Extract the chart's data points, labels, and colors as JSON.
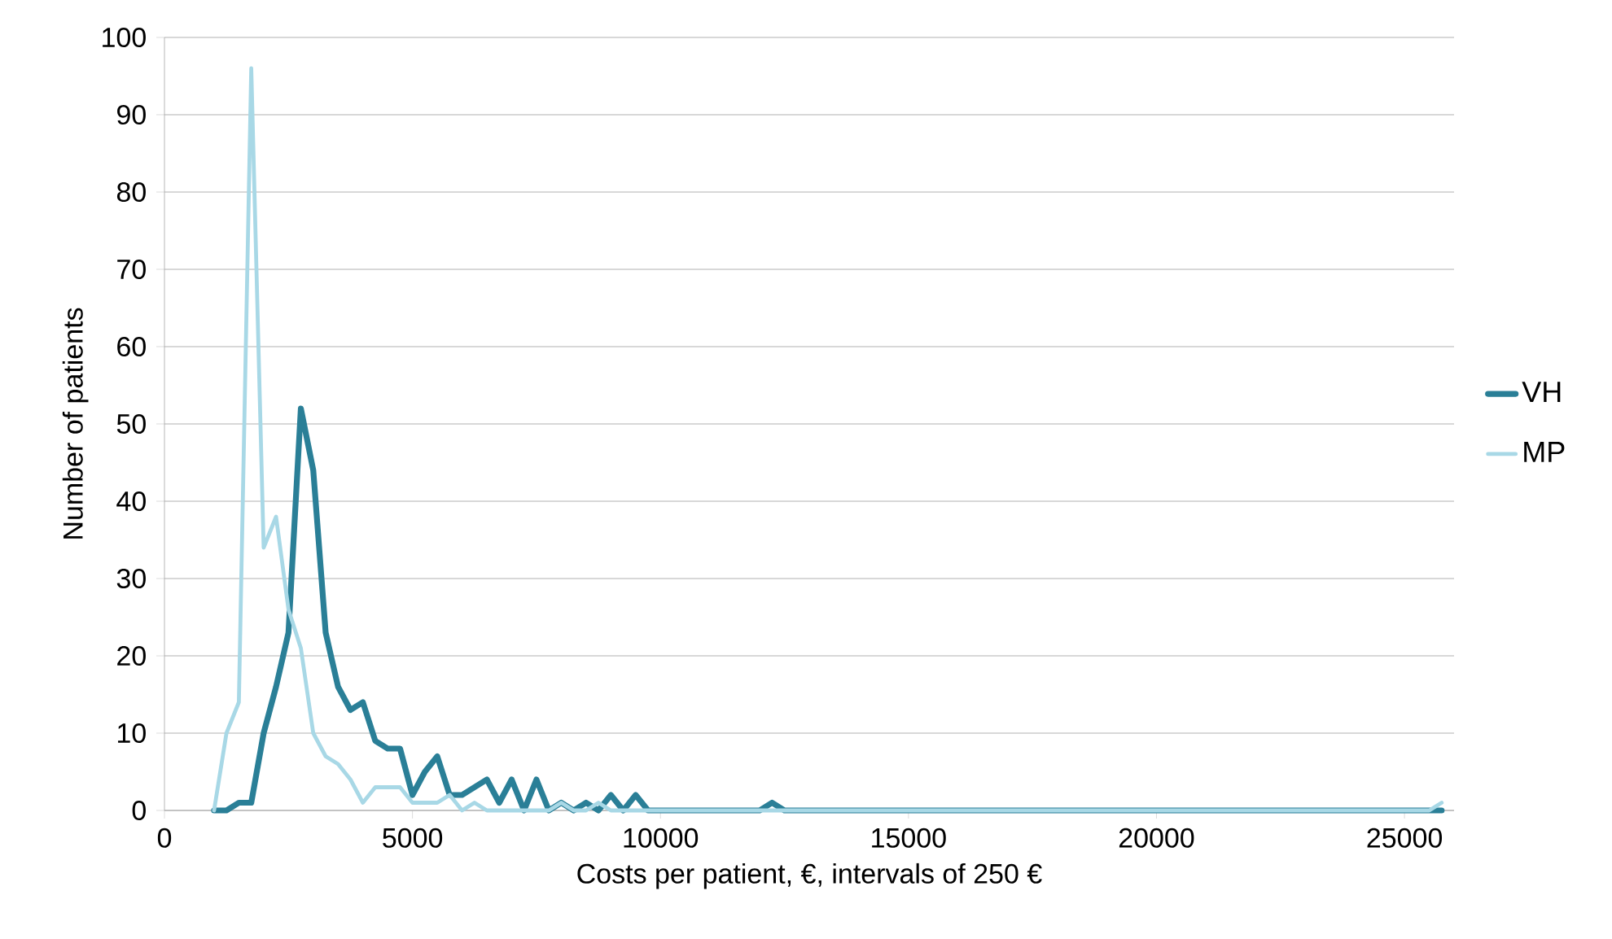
{
  "chart_data": {
    "type": "line",
    "xlabel": "Costs per patient, €, intervals of 250 €",
    "ylabel": "Number of patients",
    "xlim": [
      0,
      26000
    ],
    "ylim": [
      0,
      100
    ],
    "xticks": [
      0,
      5000,
      10000,
      15000,
      20000,
      25000
    ],
    "yticks": [
      0,
      10,
      20,
      30,
      40,
      50,
      60,
      70,
      80,
      90,
      100
    ],
    "grid": "y",
    "legend": "right",
    "series": [
      {
        "name": "VH",
        "color": "#2a7f97",
        "x": [
          1000,
          1250,
          1500,
          1750,
          2000,
          2250,
          2500,
          2750,
          3000,
          3250,
          3500,
          3750,
          4000,
          4250,
          4500,
          4750,
          5000,
          5250,
          5500,
          5750,
          6000,
          6250,
          6500,
          6750,
          7000,
          7250,
          7500,
          7750,
          8000,
          8250,
          8500,
          8750,
          9000,
          9250,
          9500,
          9750,
          10000,
          10250,
          10500,
          10750,
          11000,
          11250,
          11500,
          11750,
          12000,
          12250,
          12500,
          12750,
          25500,
          25750
        ],
        "values": [
          0,
          0,
          1,
          1,
          10,
          16,
          23,
          52,
          44,
          23,
          16,
          13,
          14,
          9,
          8,
          8,
          2,
          5,
          7,
          2,
          2,
          3,
          4,
          1,
          4,
          0,
          4,
          0,
          1,
          0,
          1,
          0,
          2,
          0,
          2,
          0,
          0,
          0,
          0,
          0,
          0,
          0,
          0,
          0,
          0,
          1,
          0,
          0,
          0,
          0
        ]
      },
      {
        "name": "MP",
        "color": "#a8d8e6",
        "x": [
          1000,
          1250,
          1500,
          1750,
          2000,
          2250,
          2500,
          2750,
          3000,
          3250,
          3500,
          3750,
          4000,
          4250,
          4500,
          4750,
          5000,
          5250,
          5500,
          5750,
          6000,
          6250,
          6500,
          6750,
          7000,
          7250,
          7500,
          7750,
          8000,
          8250,
          8500,
          8750,
          9000,
          9250,
          9500,
          9750,
          10000,
          10250,
          10500,
          10750,
          11000,
          11250,
          11500,
          11750,
          12000,
          12250,
          12500,
          12750,
          25500,
          25750
        ],
        "values": [
          0,
          10,
          14,
          96,
          34,
          38,
          26,
          21,
          10,
          7,
          6,
          4,
          1,
          3,
          3,
          3,
          1,
          1,
          1,
          2,
          0,
          1,
          0,
          0,
          0,
          0,
          0,
          0,
          1,
          0,
          0,
          1,
          0,
          0,
          0,
          0,
          0,
          0,
          0,
          0,
          0,
          0,
          0,
          0,
          0,
          0,
          0,
          0,
          0,
          1
        ]
      }
    ]
  }
}
